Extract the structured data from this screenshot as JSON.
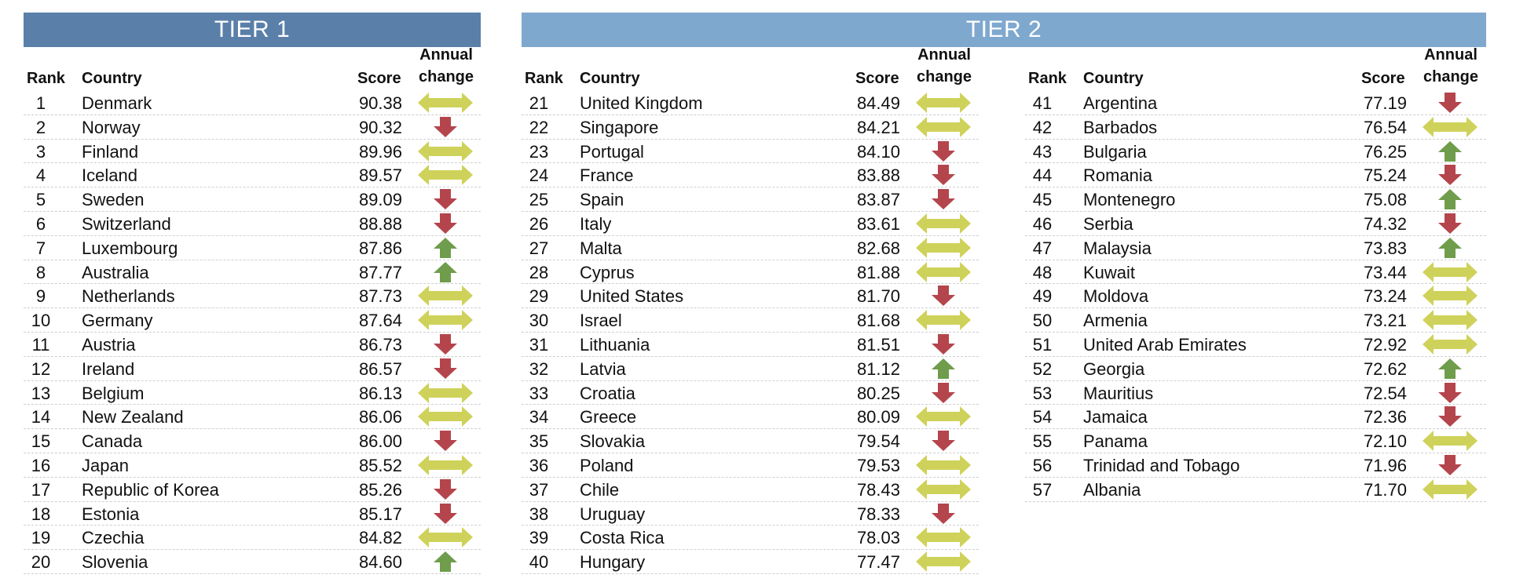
{
  "tier1": {
    "title": "TIER 1",
    "headers": {
      "rank": "Rank",
      "country": "Country",
      "score": "Score",
      "change": "Annual change"
    },
    "rows": [
      {
        "rank": "1",
        "country": "Denmark",
        "score": "90.38",
        "change": "same"
      },
      {
        "rank": "2",
        "country": "Norway",
        "score": "90.32",
        "change": "down"
      },
      {
        "rank": "3",
        "country": "Finland",
        "score": "89.96",
        "change": "same"
      },
      {
        "rank": "4",
        "country": "Iceland",
        "score": "89.57",
        "change": "same"
      },
      {
        "rank": "5",
        "country": "Sweden",
        "score": "89.09",
        "change": "down"
      },
      {
        "rank": "6",
        "country": "Switzerland",
        "score": "88.88",
        "change": "down"
      },
      {
        "rank": "7",
        "country": "Luxembourg",
        "score": "87.86",
        "change": "up"
      },
      {
        "rank": "8",
        "country": "Australia",
        "score": "87.77",
        "change": "up"
      },
      {
        "rank": "9",
        "country": "Netherlands",
        "score": "87.73",
        "change": "same"
      },
      {
        "rank": "10",
        "country": "Germany",
        "score": "87.64",
        "change": "same"
      },
      {
        "rank": "11",
        "country": "Austria",
        "score": "86.73",
        "change": "down"
      },
      {
        "rank": "12",
        "country": "Ireland",
        "score": "86.57",
        "change": "down"
      },
      {
        "rank": "13",
        "country": "Belgium",
        "score": "86.13",
        "change": "same"
      },
      {
        "rank": "14",
        "country": "New Zealand",
        "score": "86.06",
        "change": "same"
      },
      {
        "rank": "15",
        "country": "Canada",
        "score": "86.00",
        "change": "down"
      },
      {
        "rank": "16",
        "country": "Japan",
        "score": "85.52",
        "change": "same"
      },
      {
        "rank": "17",
        "country": "Republic of Korea",
        "score": "85.26",
        "change": "down"
      },
      {
        "rank": "18",
        "country": "Estonia",
        "score": "85.17",
        "change": "down"
      },
      {
        "rank": "19",
        "country": "Czechia",
        "score": "84.82",
        "change": "same"
      },
      {
        "rank": "20",
        "country": "Slovenia",
        "score": "84.60",
        "change": "up"
      }
    ]
  },
  "tier2": {
    "title": "TIER 2",
    "headers": {
      "rank": "Rank",
      "country": "Country",
      "score": "Score",
      "change": "Annual change"
    },
    "col1": [
      {
        "rank": "21",
        "country": "United Kingdom",
        "score": "84.49",
        "change": "same"
      },
      {
        "rank": "22",
        "country": "Singapore",
        "score": "84.21",
        "change": "same"
      },
      {
        "rank": "23",
        "country": "Portugal",
        "score": "84.10",
        "change": "down"
      },
      {
        "rank": "24",
        "country": "France",
        "score": "83.88",
        "change": "down"
      },
      {
        "rank": "25",
        "country": "Spain",
        "score": "83.87",
        "change": "down"
      },
      {
        "rank": "26",
        "country": "Italy",
        "score": "83.61",
        "change": "same"
      },
      {
        "rank": "27",
        "country": "Malta",
        "score": "82.68",
        "change": "same"
      },
      {
        "rank": "28",
        "country": "Cyprus",
        "score": "81.88",
        "change": "same"
      },
      {
        "rank": "29",
        "country": "United States",
        "score": "81.70",
        "change": "down"
      },
      {
        "rank": "30",
        "country": "Israel",
        "score": "81.68",
        "change": "same"
      },
      {
        "rank": "31",
        "country": "Lithuania",
        "score": "81.51",
        "change": "down"
      },
      {
        "rank": "32",
        "country": "Latvia",
        "score": "81.12",
        "change": "up"
      },
      {
        "rank": "33",
        "country": "Croatia",
        "score": "80.25",
        "change": "down"
      },
      {
        "rank": "34",
        "country": "Greece",
        "score": "80.09",
        "change": "same"
      },
      {
        "rank": "35",
        "country": "Slovakia",
        "score": "79.54",
        "change": "down"
      },
      {
        "rank": "36",
        "country": "Poland",
        "score": "79.53",
        "change": "same"
      },
      {
        "rank": "37",
        "country": "Chile",
        "score": "78.43",
        "change": "same"
      },
      {
        "rank": "38",
        "country": "Uruguay",
        "score": "78.33",
        "change": "down"
      },
      {
        "rank": "39",
        "country": "Costa Rica",
        "score": "78.03",
        "change": "same"
      },
      {
        "rank": "40",
        "country": "Hungary",
        "score": "77.47",
        "change": "same"
      }
    ],
    "col2": [
      {
        "rank": "41",
        "country": "Argentina",
        "score": "77.19",
        "change": "down"
      },
      {
        "rank": "42",
        "country": "Barbados",
        "score": "76.54",
        "change": "same"
      },
      {
        "rank": "43",
        "country": "Bulgaria",
        "score": "76.25",
        "change": "up"
      },
      {
        "rank": "44",
        "country": "Romania",
        "score": "75.24",
        "change": "down"
      },
      {
        "rank": "45",
        "country": "Montenegro",
        "score": "75.08",
        "change": "up"
      },
      {
        "rank": "46",
        "country": "Serbia",
        "score": "74.32",
        "change": "down"
      },
      {
        "rank": "47",
        "country": "Malaysia",
        "score": "73.83",
        "change": "up"
      },
      {
        "rank": "48",
        "country": "Kuwait",
        "score": "73.44",
        "change": "same"
      },
      {
        "rank": "49",
        "country": "Moldova",
        "score": "73.24",
        "change": "same"
      },
      {
        "rank": "50",
        "country": "Armenia",
        "score": "73.21",
        "change": "same"
      },
      {
        "rank": "51",
        "country": "United Arab Emirates",
        "score": "72.92",
        "change": "same"
      },
      {
        "rank": "52",
        "country": "Georgia",
        "score": "72.62",
        "change": "up"
      },
      {
        "rank": "53",
        "country": "Mauritius",
        "score": "72.54",
        "change": "down"
      },
      {
        "rank": "54",
        "country": "Jamaica",
        "score": "72.36",
        "change": "down"
      },
      {
        "rank": "55",
        "country": "Panama",
        "score": "72.10",
        "change": "same"
      },
      {
        "rank": "56",
        "country": "Trinidad and Tobago",
        "score": "71.96",
        "change": "down"
      },
      {
        "rank": "57",
        "country": "Albania",
        "score": "71.70",
        "change": "same"
      }
    ]
  },
  "colors": {
    "tier1_banner": "#5a7fa9",
    "tier2_banner": "#7fa8cf",
    "arrow_down": "#b4454c",
    "arrow_up": "#6f9d4b",
    "arrow_same": "#cfd25a"
  }
}
